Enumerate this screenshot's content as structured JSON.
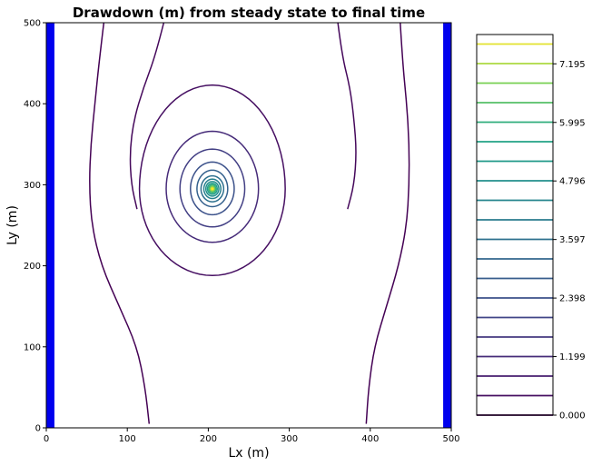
{
  "chart_data": {
    "type": "contour",
    "title": "Drawdown (m) from steady state to final time",
    "xlabel": "Lx (m)",
    "ylabel": "Ly (m)",
    "xlim": [
      0,
      500
    ],
    "ylim": [
      0,
      500
    ],
    "xticks": [
      "0",
      "100",
      "200",
      "300",
      "400",
      "500"
    ],
    "yticks": [
      "0",
      "100",
      "200",
      "300",
      "400",
      "500"
    ],
    "grid": false,
    "colormap": "viridis",
    "boundary_color": "#0000ee",
    "boundary_bands": [
      {
        "name": "left-boundary",
        "x_from": 0,
        "x_to": 10
      },
      {
        "name": "right-boundary",
        "x_from": 490,
        "x_to": 500
      }
    ],
    "well": {
      "x": 205,
      "y": 295
    },
    "closed_contours": [
      {
        "level": 0.4,
        "rx": 90,
        "ry_top": 128,
        "ry_bottom": 107
      },
      {
        "level": 1.2,
        "rx": 57,
        "ry_top": 71,
        "ry_bottom": 66
      },
      {
        "level": 1.8,
        "rx": 40,
        "ry_top": 49,
        "ry_bottom": 47
      },
      {
        "level": 2.4,
        "rx": 27,
        "ry_top": 33,
        "ry_bottom": 32
      },
      {
        "level": 3.0,
        "rx": 19,
        "ry_top": 23,
        "ry_bottom": 22
      },
      {
        "level": 3.6,
        "rx": 14,
        "ry_top": 16,
        "ry_bottom": 16
      },
      {
        "level": 4.2,
        "rx": 10.5,
        "ry_top": 12,
        "ry_bottom": 12
      },
      {
        "level": 4.8,
        "rx": 8,
        "ry_top": 9,
        "ry_bottom": 9
      },
      {
        "level": 5.4,
        "rx": 6,
        "ry_top": 6.8,
        "ry_bottom": 6.8
      },
      {
        "level": 6.0,
        "rx": 4.3,
        "ry_top": 5,
        "ry_bottom": 5
      },
      {
        "level": 6.6,
        "rx": 3,
        "ry_top": 3.4,
        "ry_bottom": 3.4
      },
      {
        "level": 7.2,
        "rx": 1.8,
        "ry_top": 2,
        "ry_bottom": 2
      }
    ],
    "open_contours": [
      {
        "name": "contour-open-left-outer",
        "level": 0.0,
        "points": [
          [
            71,
            500
          ],
          [
            65,
            450
          ],
          [
            60,
            400
          ],
          [
            55,
            350
          ],
          [
            53,
            300
          ],
          [
            56,
            250
          ],
          [
            68,
            200
          ],
          [
            90,
            150
          ],
          [
            112,
            100
          ],
          [
            122,
            50
          ],
          [
            127,
            5
          ]
        ]
      },
      {
        "name": "contour-open-left-inner",
        "level": 0.2,
        "points": [
          [
            145,
            500
          ],
          [
            135,
            460
          ],
          [
            120,
            420
          ],
          [
            108,
            380
          ],
          [
            103,
            340
          ],
          [
            105,
            300
          ],
          [
            112,
            270
          ]
        ]
      },
      {
        "name": "contour-open-right-outer",
        "level": 0.0,
        "points": [
          [
            437,
            500
          ],
          [
            440,
            450
          ],
          [
            445,
            400
          ],
          [
            448,
            350
          ],
          [
            448,
            300
          ],
          [
            445,
            250
          ],
          [
            435,
            200
          ],
          [
            420,
            150
          ],
          [
            405,
            100
          ],
          [
            398,
            50
          ],
          [
            395,
            5
          ]
        ]
      },
      {
        "name": "contour-open-right-inner",
        "level": 0.2,
        "points": [
          [
            360,
            500
          ],
          [
            365,
            460
          ],
          [
            375,
            420
          ],
          [
            380,
            380
          ],
          [
            383,
            340
          ],
          [
            380,
            300
          ],
          [
            372,
            270
          ]
        ]
      }
    ],
    "colorbar": {
      "min": 0.0,
      "max": 7.795,
      "line_levels": [
        0.0,
        0.4,
        0.8,
        1.2,
        1.6,
        2.0,
        2.4,
        2.8,
        3.2,
        3.6,
        4.0,
        4.4,
        4.8,
        5.2,
        5.6,
        6.0,
        6.4,
        6.8,
        7.2,
        7.6
      ],
      "tick_values": [
        0.0,
        1.199,
        2.398,
        3.597,
        4.796,
        5.995,
        7.195
      ],
      "tick_labels": [
        "0.000",
        "1.199",
        "2.398",
        "3.597",
        "4.796",
        "5.995",
        "7.195"
      ]
    }
  }
}
